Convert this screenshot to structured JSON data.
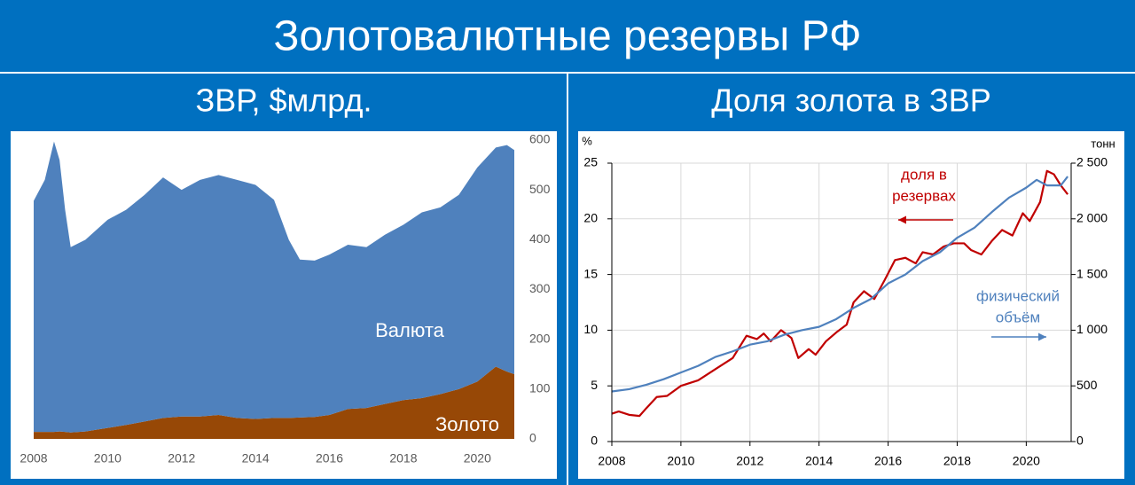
{
  "title": "Золотовалютные резервы РФ",
  "chart_data": [
    {
      "type": "area",
      "stacked": true,
      "title": "ЗВР, $млрд.",
      "x": [
        2008.0,
        2008.3,
        2008.55,
        2008.7,
        2008.85,
        2009.0,
        2009.4,
        2010.0,
        2010.5,
        2011.0,
        2011.5,
        2012.0,
        2012.5,
        2013.0,
        2013.5,
        2014.0,
        2014.5,
        2014.9,
        2015.2,
        2015.6,
        2016.0,
        2016.5,
        2017.0,
        2017.5,
        2018.0,
        2018.5,
        2019.0,
        2019.5,
        2020.0,
        2020.5,
        2020.8,
        2021.0
      ],
      "series": [
        {
          "name": "Золото",
          "color": "#974806",
          "values": [
            14,
            14,
            14,
            15,
            14,
            13,
            15,
            22,
            28,
            35,
            42,
            45,
            45,
            48,
            42,
            40,
            42,
            42,
            43,
            44,
            48,
            60,
            62,
            70,
            78,
            82,
            90,
            100,
            115,
            145,
            135,
            130
          ]
        },
        {
          "name": "Валюта",
          "color": "#4f81bd",
          "values": [
            464,
            506,
            583,
            545,
            446,
            372,
            385,
            418,
            432,
            455,
            483,
            455,
            475,
            482,
            478,
            470,
            438,
            358,
            317,
            314,
            322,
            330,
            323,
            340,
            352,
            373,
            375,
            390,
            430,
            440,
            455,
            450
          ]
        }
      ],
      "xlim": [
        2008,
        2021
      ],
      "xticks": [
        2008,
        2010,
        2012,
        2014,
        2016,
        2018,
        2020
      ],
      "ylim": [
        0,
        600
      ],
      "yticks": [
        0,
        100,
        200,
        300,
        400,
        500,
        600
      ],
      "y_axis_side": "right",
      "grid": false
    },
    {
      "type": "line",
      "title": "Доля золота в ЗВР",
      "ylabel": "%",
      "y2label": "тонн",
      "series": [
        {
          "color": "#c00000",
          "axis": "y",
          "x": [
            2008.0,
            2008.2,
            2008.5,
            2008.8,
            2009.0,
            2009.3,
            2009.6,
            2010.0,
            2010.5,
            2011.0,
            2011.5,
            2011.7,
            2011.9,
            2012.2,
            2012.4,
            2012.6,
            2012.9,
            2013.2,
            2013.4,
            2013.7,
            2013.9,
            2014.2,
            2014.5,
            2014.8,
            2015.0,
            2015.3,
            2015.6,
            2015.9,
            2016.2,
            2016.5,
            2016.8,
            2017.0,
            2017.3,
            2017.6,
            2017.9,
            2018.2,
            2018.4,
            2018.7,
            2019.0,
            2019.3,
            2019.6,
            2019.9,
            2020.1,
            2020.4,
            2020.6,
            2020.8,
            2021.0,
            2021.2
          ],
          "values": [
            2.5,
            2.7,
            2.4,
            2.3,
            3.0,
            4.0,
            4.1,
            5.0,
            5.5,
            6.5,
            7.5,
            8.5,
            9.5,
            9.2,
            9.7,
            9.0,
            10.0,
            9.3,
            7.5,
            8.3,
            7.8,
            9.0,
            9.8,
            10.5,
            12.5,
            13.5,
            12.8,
            14.5,
            16.3,
            16.5,
            16.0,
            17.0,
            16.8,
            17.5,
            17.8,
            17.8,
            17.2,
            16.8,
            18.0,
            19.0,
            18.5,
            20.5,
            19.8,
            21.5,
            24.3,
            24.0,
            23.0,
            22.2
          ]
        },
        {
          "color": "#4f81bd",
          "axis": "y2",
          "x": [
            2008.0,
            2008.5,
            2009.0,
            2009.5,
            2010.0,
            2010.5,
            2011.0,
            2011.5,
            2012.0,
            2012.5,
            2013.0,
            2013.5,
            2014.0,
            2014.5,
            2015.0,
            2015.5,
            2016.0,
            2016.5,
            2017.0,
            2017.5,
            2018.0,
            2018.5,
            2019.0,
            2019.5,
            2020.0,
            2020.3,
            2020.6,
            2021.0,
            2021.2
          ],
          "values": [
            450,
            470,
            510,
            560,
            620,
            680,
            760,
            810,
            870,
            900,
            960,
            1000,
            1030,
            1100,
            1200,
            1280,
            1420,
            1500,
            1620,
            1700,
            1830,
            1920,
            2060,
            2190,
            2280,
            2350,
            2300,
            2300,
            2380
          ]
        }
      ],
      "annotations": [
        {
          "lines": [
            "доля в",
            "резервах"
          ]
        },
        {
          "lines": [
            "физический",
            "объём"
          ]
        }
      ],
      "xlim": [
        2008,
        2021.3
      ],
      "xticks": [
        2008,
        2010,
        2012,
        2014,
        2016,
        2018,
        2020
      ],
      "ylim": [
        0,
        25
      ],
      "yticks": [
        0,
        5,
        10,
        15,
        20,
        25
      ],
      "y2lim": [
        0,
        2500
      ],
      "y2ticks": [
        0,
        500,
        {
          "value": 1000,
          "label": "1 000"
        },
        {
          "value": 1500,
          "label": "1 500"
        },
        {
          "value": 2000,
          "label": "2 000"
        },
        {
          "value": 2500,
          "label": "2 500"
        }
      ],
      "grid": true
    }
  ]
}
